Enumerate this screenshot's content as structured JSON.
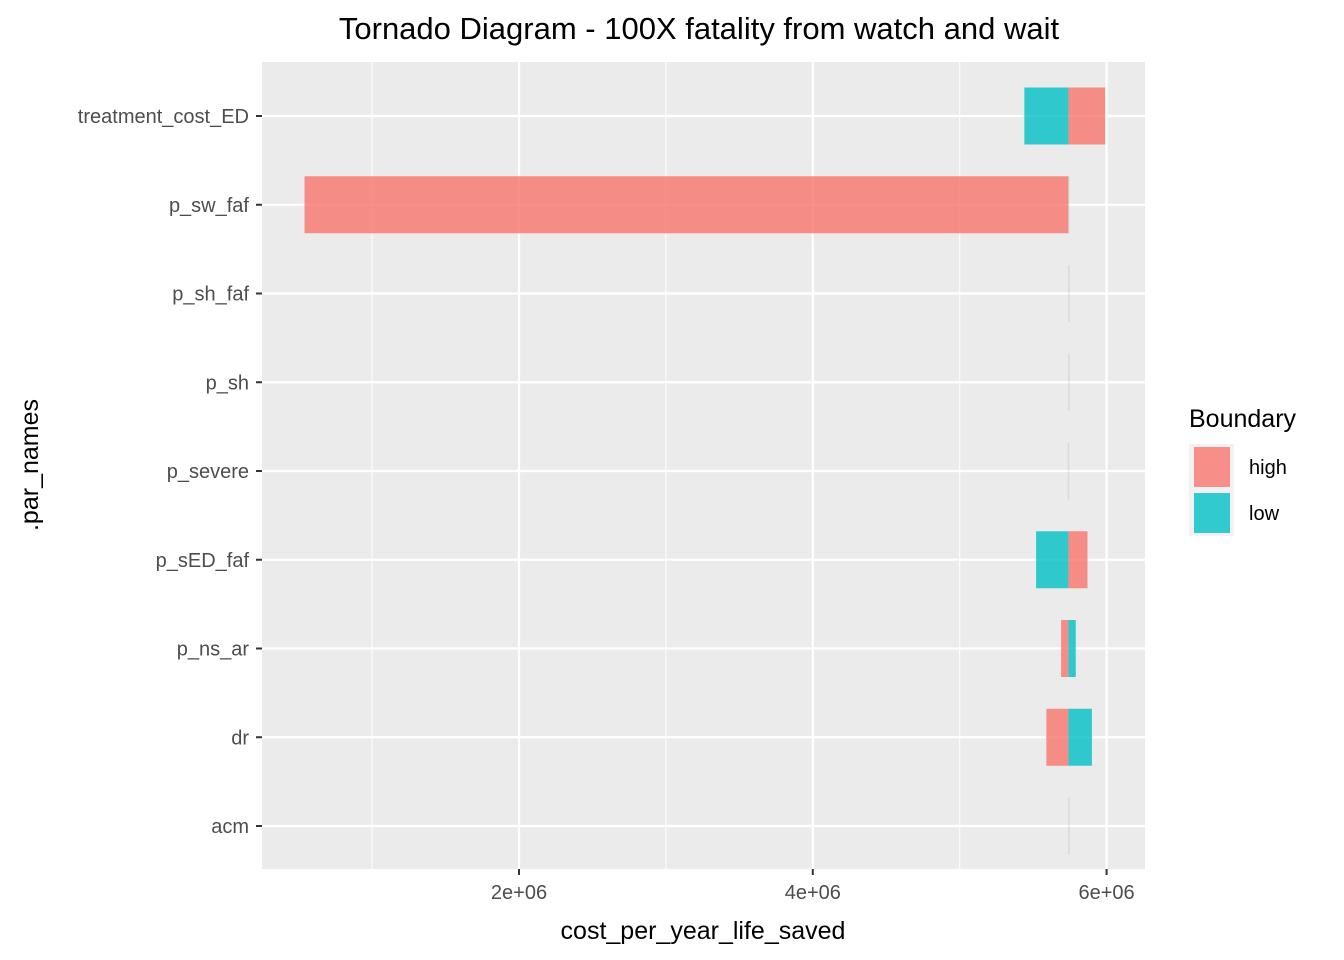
{
  "chart_data": {
    "type": "bar",
    "orientation": "horizontal",
    "title": "Tornado Diagram - 100X fatality from watch and wait",
    "xlabel": "cost_per_year_life_saved",
    "ylabel": ".par_names",
    "xlim": [
      0,
      6000000
    ],
    "x_ticks": [
      2000000,
      4000000,
      6000000
    ],
    "x_tick_labels": [
      "2e+06",
      "4e+06",
      "6e+06"
    ],
    "base_value": 5740000,
    "categories": [
      "treatment_cost_ED",
      "p_sw_faf",
      "p_sh_faf",
      "p_sh",
      "p_severe",
      "p_sED_faf",
      "p_ns_ar",
      "dr",
      "acm"
    ],
    "series": [
      {
        "name": "high",
        "color": "#F8766D",
        "values": [
          5990000,
          540000,
          5740000,
          5740000,
          5745000,
          5870000,
          5690000,
          5590000,
          5740000
        ]
      },
      {
        "name": "low",
        "color": "#00BFC4",
        "values": [
          5440000,
          5740000,
          5740000,
          5740000,
          5735000,
          5520000,
          5790000,
          5900000,
          5740000
        ]
      }
    ],
    "grid": true,
    "legend": {
      "title": "Boundary",
      "position": "right",
      "labels": [
        "high",
        "low"
      ]
    }
  }
}
